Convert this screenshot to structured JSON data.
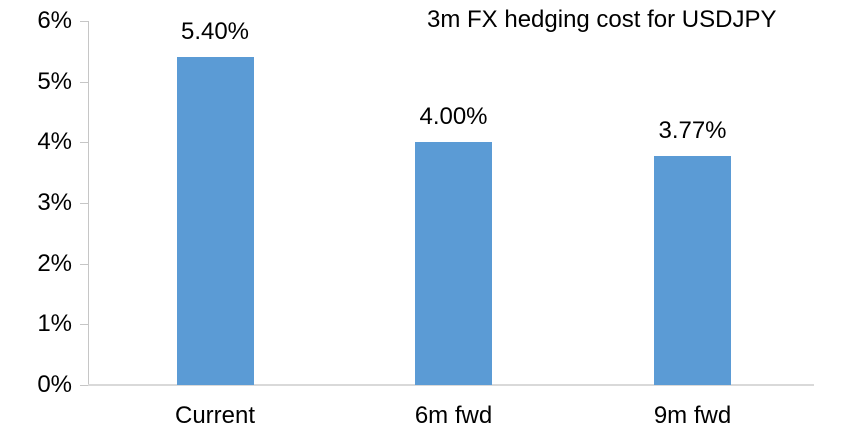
{
  "chart_data": {
    "type": "bar",
    "title": "3m FX hedging cost for USDJPY",
    "categories": [
      "Current",
      "6m fwd",
      "9m fwd"
    ],
    "values": [
      5.4,
      4.0,
      3.77
    ],
    "data_labels": [
      "5.40%",
      "4.00%",
      "3.77%"
    ],
    "y_ticks": [
      "0%",
      "1%",
      "2%",
      "3%",
      "4%",
      "5%",
      "6%"
    ],
    "ylim": [
      0,
      6
    ],
    "y_tick_step": 1,
    "xlabel": "",
    "ylabel": "",
    "grid": false,
    "legend": "none",
    "bar_color": "#5b9bd5",
    "axis_color": "#c6c6c6",
    "baseline_color": "#d9d9d9",
    "text_color": "#000000"
  }
}
